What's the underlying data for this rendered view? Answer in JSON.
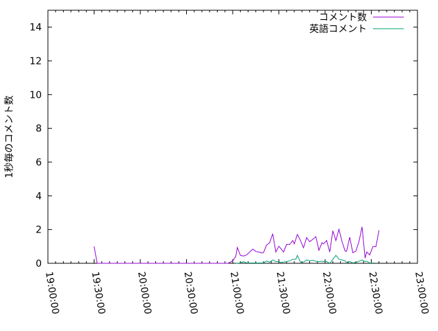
{
  "chart_data": {
    "type": "line",
    "title": "",
    "xlabel": "",
    "ylabel": "1秒毎のコメント数",
    "xlim": [
      "19:00:00",
      "23:00:00"
    ],
    "ylim": [
      0,
      15
    ],
    "xticks": [
      "19:00:00",
      "19:30:00",
      "20:00:00",
      "20:30:00",
      "21:00:00",
      "21:30:00",
      "22:00:00",
      "22:30:00",
      "23:00:00"
    ],
    "yticks": [
      0,
      2,
      4,
      6,
      8,
      10,
      12,
      14
    ],
    "grid": false,
    "legend": "top-right",
    "series": [
      {
        "name": "コメント数",
        "color": "#9400d3",
        "x": [
          "19:30",
          "19:32",
          "20:51",
          "20:54",
          "20:57",
          "21:00",
          "21:02",
          "21:03",
          "21:05",
          "21:07",
          "21:09",
          "21:10",
          "21:13",
          "21:15",
          "21:17",
          "21:19",
          "21:20",
          "21:22",
          "21:24",
          "21:26",
          "21:28",
          "21:30",
          "21:31",
          "21:33",
          "21:35",
          "21:37",
          "21:39",
          "21:40",
          "21:42",
          "21:44",
          "21:46",
          "21:48",
          "21:50",
          "21:52",
          "21:54",
          "21:56",
          "21:58",
          "21:59",
          "22:01",
          "22:03",
          "22:05",
          "22:07",
          "22:09",
          "22:11",
          "22:13",
          "22:14",
          "22:16",
          "22:18",
          "22:20",
          "22:22",
          "22:24",
          "22:26",
          "22:27",
          "22:29",
          "22:31",
          "22:33",
          "22:35"
        ],
        "y": [
          1,
          0,
          0,
          0,
          0,
          0.14,
          0.41,
          0.94,
          0.47,
          0.43,
          0.5,
          0.58,
          0.84,
          0.7,
          0.67,
          0.61,
          0.63,
          1.08,
          1.22,
          1.75,
          0.67,
          1.01,
          0.9,
          0.67,
          1.12,
          1.12,
          1.35,
          1.15,
          1.71,
          1.35,
          0.92,
          1.52,
          1.28,
          1.42,
          1.58,
          0.77,
          1.22,
          1.15,
          1.35,
          0.67,
          1.93,
          1.35,
          2.02,
          1.28,
          0.72,
          0.72,
          1.55,
          0.63,
          0.72,
          1.28,
          2.16,
          0.31,
          0.67,
          0.5,
          0.99,
          0.99,
          1.96
        ]
      },
      {
        "name": "英語コメント",
        "color": "#009e73",
        "x": [
          "21:02",
          "21:05",
          "21:07",
          "21:09",
          "21:10",
          "21:20",
          "21:22",
          "21:24",
          "21:26",
          "21:28",
          "21:30",
          "21:31",
          "21:33",
          "21:35",
          "21:37",
          "21:39",
          "21:41",
          "21:42",
          "21:44",
          "21:46",
          "21:48",
          "21:50",
          "21:52",
          "21:54",
          "21:56",
          "21:58",
          "21:59",
          "22:01",
          "22:03",
          "22:05",
          "22:07",
          "22:09",
          "22:11",
          "22:13",
          "22:14",
          "22:16",
          "22:18",
          "22:20",
          "22:24",
          "22:26",
          "22:27",
          "22:29",
          "22:32"
        ],
        "y": [
          0,
          0.02,
          0.1,
          0.02,
          0.02,
          0.02,
          0.14,
          0.07,
          0.2,
          0.1,
          0.1,
          0.05,
          0.07,
          0.1,
          0.15,
          0.24,
          0.24,
          0.47,
          0.07,
          0.07,
          0.2,
          0.15,
          0.18,
          0.12,
          0.1,
          0.12,
          0.1,
          0.1,
          0,
          0.24,
          0.47,
          0.24,
          0.2,
          0.14,
          0.05,
          0.1,
          0.02,
          0.05,
          0.2,
          0.1,
          0.12,
          0.02,
          0.02
        ]
      }
    ]
  }
}
